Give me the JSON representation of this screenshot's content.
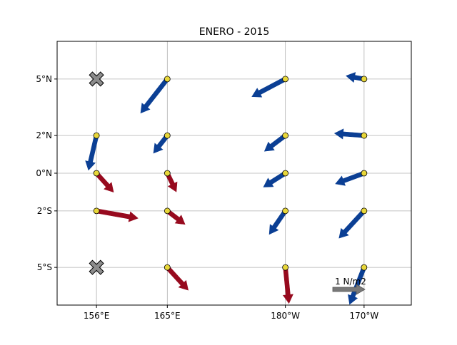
{
  "chart_data": {
    "type": "quiver",
    "title": "ENERO - 2015",
    "x_axis": {
      "range": [
        151,
        196
      ],
      "ticks": [
        {
          "lon": 156,
          "label": "156°E"
        },
        {
          "lon": 165,
          "label": "165°E"
        },
        {
          "lon": 180,
          "label": "180°W"
        },
        {
          "lon": 190,
          "label": "170°W"
        }
      ]
    },
    "y_axis": {
      "range": [
        -7,
        7
      ],
      "ticks": [
        {
          "lat": 5,
          "label": "5°N"
        },
        {
          "lat": 2,
          "label": "2°N"
        },
        {
          "lat": 0,
          "label": "0°N"
        },
        {
          "lat": -2,
          "label": "2°S"
        },
        {
          "lat": -5,
          "label": "5°S"
        }
      ]
    },
    "grid": true,
    "colors": {
      "westward": "#0b3f94",
      "eastward": "#970a1e",
      "station": "#e8d73a",
      "missing": "#8c8c8c",
      "key": "#787878",
      "grid": "#b0b0b0"
    },
    "vector_scale_note": "vector components in N/m² (key arrow = 1 N/m²)",
    "key": {
      "label": "1 N/m2",
      "magnitude": 1
    },
    "missing_stations": [
      {
        "lon": 156,
        "lat": 5
      },
      {
        "lon": 156,
        "lat": -5
      }
    ],
    "vectors": [
      {
        "lon": 165,
        "lat": 5,
        "u": -0.83,
        "v": -1.06
      },
      {
        "lon": 180,
        "lat": 5,
        "u": -1.04,
        "v": -0.55
      },
      {
        "lon": 190,
        "lat": 5,
        "u": -0.56,
        "v": 0.1
      },
      {
        "lon": 156,
        "lat": 2,
        "u": -0.25,
        "v": -1.08
      },
      {
        "lon": 165,
        "lat": 2,
        "u": -0.43,
        "v": -0.55
      },
      {
        "lon": 180,
        "lat": 2,
        "u": -0.65,
        "v": -0.49
      },
      {
        "lon": 190,
        "lat": 2,
        "u": -0.92,
        "v": 0.07
      },
      {
        "lon": 156,
        "lat": 0,
        "u": 0.53,
        "v": -0.59
      },
      {
        "lon": 165,
        "lat": 0,
        "u": 0.28,
        "v": -0.58
      },
      {
        "lon": 180,
        "lat": 0,
        "u": -0.68,
        "v": -0.43
      },
      {
        "lon": 190,
        "lat": 0,
        "u": -0.89,
        "v": -0.33
      },
      {
        "lon": 156,
        "lat": -2,
        "u": 1.29,
        "v": -0.23
      },
      {
        "lon": 165,
        "lat": -2,
        "u": 0.55,
        "v": -0.42
      },
      {
        "lon": 180,
        "lat": -2,
        "u": -0.5,
        "v": -0.73
      },
      {
        "lon": 190,
        "lat": -2,
        "u": -0.78,
        "v": -0.85
      },
      {
        "lon": 165,
        "lat": -5,
        "u": 0.65,
        "v": -0.71
      },
      {
        "lon": 180,
        "lat": -5,
        "u": 0.11,
        "v": -1.12
      },
      {
        "lon": 190,
        "lat": -5,
        "u": -0.45,
        "v": -1.15
      }
    ]
  }
}
